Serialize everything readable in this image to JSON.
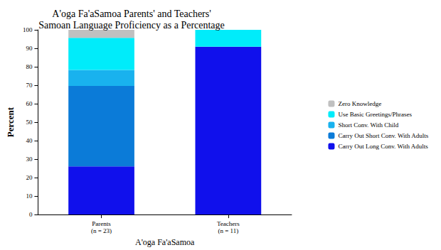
{
  "chart_data": {
    "type": "bar",
    "title": "A'oga Fa'aSamoa Parents' and Teachers'\nSamoan Language Proficiency as a Percentage",
    "x_label": "A'oga Fa'aSamoa",
    "y_label": "Percent",
    "categories": [
      "Parents\n(n = 23)",
      "Teachers\n(n = 11)"
    ],
    "series": [
      {
        "name": "Carry Out Long Conv. With Adults",
        "color": "#1010ec",
        "values": [
          26.1,
          90.9
        ]
      },
      {
        "name": "Carry Out Short Conv. With Adults",
        "color": "#0b7bd8",
        "values": [
          43.5,
          0
        ]
      },
      {
        "name": "Short Conv. With Child",
        "color": "#19b2ee",
        "values": [
          8.7,
          0
        ]
      },
      {
        "name": "Use Basic Greetings/Phrases",
        "color": "#00ecfa",
        "values": [
          17.4,
          9.1
        ]
      },
      {
        "name": "Zero Knowledge",
        "color": "#c0c0c0",
        "values": [
          4.3,
          0
        ]
      }
    ],
    "ylim": [
      0,
      100
    ],
    "yticks": [
      0,
      10,
      20,
      30,
      40,
      50,
      60,
      70,
      80,
      90,
      100
    ],
    "stacked": true,
    "grid": false,
    "legend": "right"
  }
}
